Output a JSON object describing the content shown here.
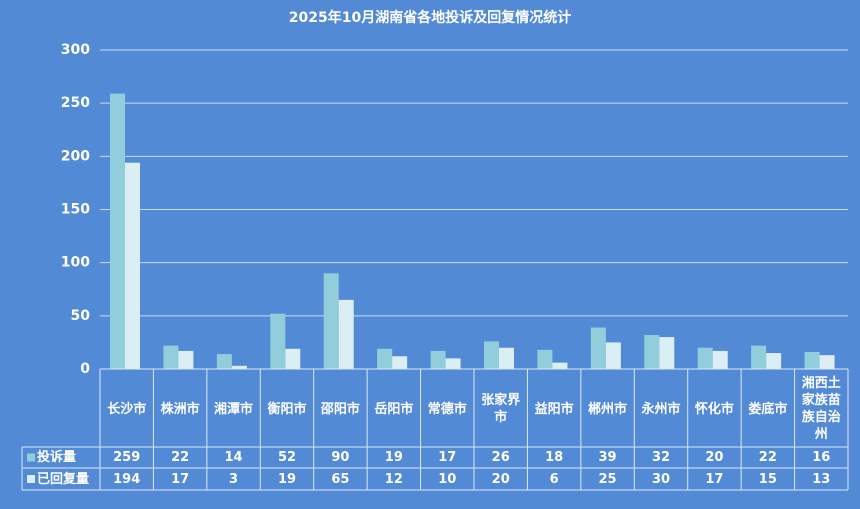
{
  "chart_data": {
    "type": "bar",
    "title": "2025年10月湖南省各地投诉及回复情况统计",
    "categories": [
      "长沙市",
      "株洲市",
      "湘潭市",
      "衡阳市",
      "邵阳市",
      "岳阳市",
      "常德市",
      "张家界市",
      "益阳市",
      "郴州市",
      "永州市",
      "怀化市",
      "娄底市",
      "湘西土家族苗族自治州"
    ],
    "series": [
      {
        "name": "投诉量",
        "color": "#92cddc",
        "values": [
          259,
          22,
          14,
          52,
          90,
          19,
          17,
          26,
          18,
          39,
          32,
          20,
          22,
          16
        ]
      },
      {
        "name": "已回复量",
        "color": "#dbeef4",
        "values": [
          194,
          17,
          3,
          19,
          65,
          12,
          10,
          20,
          6,
          25,
          30,
          17,
          15,
          13
        ]
      }
    ],
    "ylim": [
      0,
      300
    ],
    "yticks": [
      0,
      50,
      100,
      150,
      200,
      250,
      300
    ],
    "grid": true
  }
}
